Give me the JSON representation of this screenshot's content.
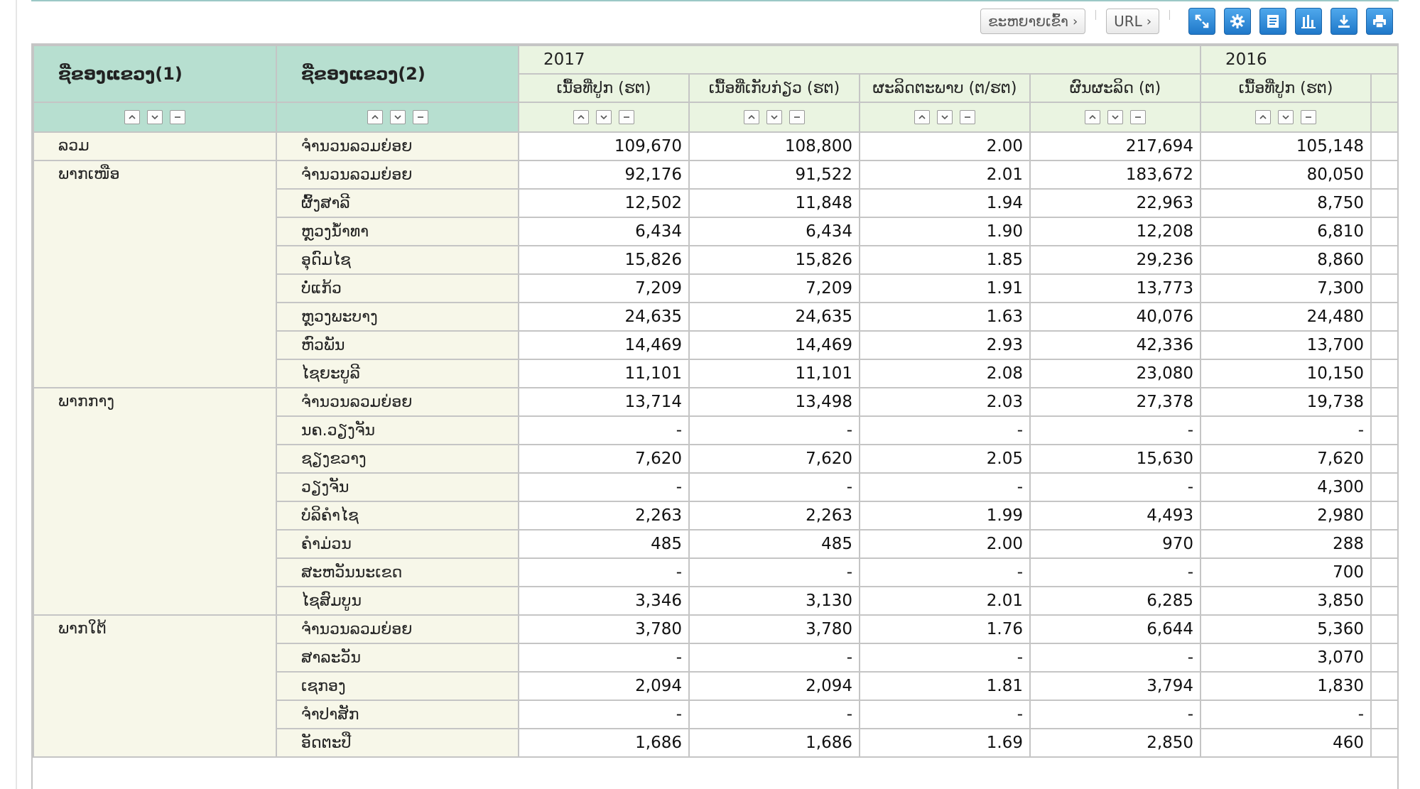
{
  "toolbar": {
    "expand_label": "ຂະຫຍາຍເຂົ້າ",
    "url_label": "URL",
    "icons": [
      "resize-icon",
      "settings-icon",
      "document-icon",
      "chart-icon",
      "download-icon",
      "print-icon"
    ]
  },
  "table": {
    "dim1_header": "ຊື່ຂອງແຂວງ(1)",
    "dim2_header": "ຊື່ຂອງແຂວງ(2)",
    "years": [
      "2017",
      "2016"
    ],
    "measures": [
      "ເນື້ອທີ່ປູກ (ຮຕ)",
      "ເນື້ອທີ່ເກັບກ່ຽວ (ຮຕ)",
      "ຜະລິດຕະພາບ (ຕ/ຮຕ)",
      "ຜົນຜະລິດ (ຕ)",
      "ເນື້ອທີ່ປູກ (ຮຕ)"
    ],
    "groups": [
      {
        "label": "ລວມ",
        "rows": [
          {
            "name": "ຈຳນວນລວມຍ່ອຍ",
            "values": [
              "109,670",
              "108,800",
              "2.00",
              "217,694",
              "105,148"
            ]
          }
        ]
      },
      {
        "label": "ພາກເໜືອ",
        "rows": [
          {
            "name": "ຈຳນວນລວມຍ່ອຍ",
            "values": [
              "92,176",
              "91,522",
              "2.01",
              "183,672",
              "80,050"
            ]
          },
          {
            "name": "ຜົ້ງສາລີ",
            "values": [
              "12,502",
              "11,848",
              "1.94",
              "22,963",
              "8,750"
            ]
          },
          {
            "name": "ຫຼວງນ້ຳທາ",
            "values": [
              "6,434",
              "6,434",
              "1.90",
              "12,208",
              "6,810"
            ]
          },
          {
            "name": "ອຸດົມໄຊ",
            "values": [
              "15,826",
              "15,826",
              "1.85",
              "29,236",
              "8,860"
            ]
          },
          {
            "name": "ບໍ່ແກ້ວ",
            "values": [
              "7,209",
              "7,209",
              "1.91",
              "13,773",
              "7,300"
            ]
          },
          {
            "name": "ຫຼວງພະບາງ",
            "values": [
              "24,635",
              "24,635",
              "1.63",
              "40,076",
              "24,480"
            ]
          },
          {
            "name": "ຫົວພັນ",
            "values": [
              "14,469",
              "14,469",
              "2.93",
              "42,336",
              "13,700"
            ]
          },
          {
            "name": "ໄຊຍະບູລີ",
            "values": [
              "11,101",
              "11,101",
              "2.08",
              "23,080",
              "10,150"
            ]
          }
        ]
      },
      {
        "label": "ພາກກາງ",
        "rows": [
          {
            "name": "ຈຳນວນລວມຍ່ອຍ",
            "values": [
              "13,714",
              "13,498",
              "2.03",
              "27,378",
              "19,738"
            ]
          },
          {
            "name": "ນຄ.ວຽງຈັນ",
            "values": [
              "-",
              "-",
              "-",
              "-",
              "-"
            ]
          },
          {
            "name": "ຊຽງຂວາງ",
            "values": [
              "7,620",
              "7,620",
              "2.05",
              "15,630",
              "7,620"
            ]
          },
          {
            "name": "ວຽງຈັນ",
            "values": [
              "-",
              "-",
              "-",
              "-",
              "4,300"
            ]
          },
          {
            "name": "ບໍລິຄຳໄຊ",
            "values": [
              "2,263",
              "2,263",
              "1.99",
              "4,493",
              "2,980"
            ]
          },
          {
            "name": "ຄຳມ່ວນ",
            "values": [
              "485",
              "485",
              "2.00",
              "970",
              "288"
            ]
          },
          {
            "name": "ສະຫວັນນະເຂດ",
            "values": [
              "-",
              "-",
              "-",
              "-",
              "700"
            ]
          },
          {
            "name": "ໄຊສົມບູນ",
            "values": [
              "3,346",
              "3,130",
              "2.01",
              "6,285",
              "3,850"
            ]
          }
        ]
      },
      {
        "label": "ພາກໃຕ້",
        "rows": [
          {
            "name": "ຈຳນວນລວມຍ່ອຍ",
            "values": [
              "3,780",
              "3,780",
              "1.76",
              "6,644",
              "5,360"
            ]
          },
          {
            "name": "ສາລະວັນ",
            "values": [
              "-",
              "-",
              "-",
              "-",
              "3,070"
            ]
          },
          {
            "name": "ເຊກອງ",
            "values": [
              "2,094",
              "2,094",
              "1.81",
              "3,794",
              "1,830"
            ]
          },
          {
            "name": "ຈຳປາສັກ",
            "values": [
              "-",
              "-",
              "-",
              "-",
              "-"
            ]
          },
          {
            "name": "ອັດຕະປື",
            "values": [
              "1,686",
              "1,686",
              "1.69",
              "2,850",
              "460"
            ]
          }
        ]
      }
    ]
  }
}
